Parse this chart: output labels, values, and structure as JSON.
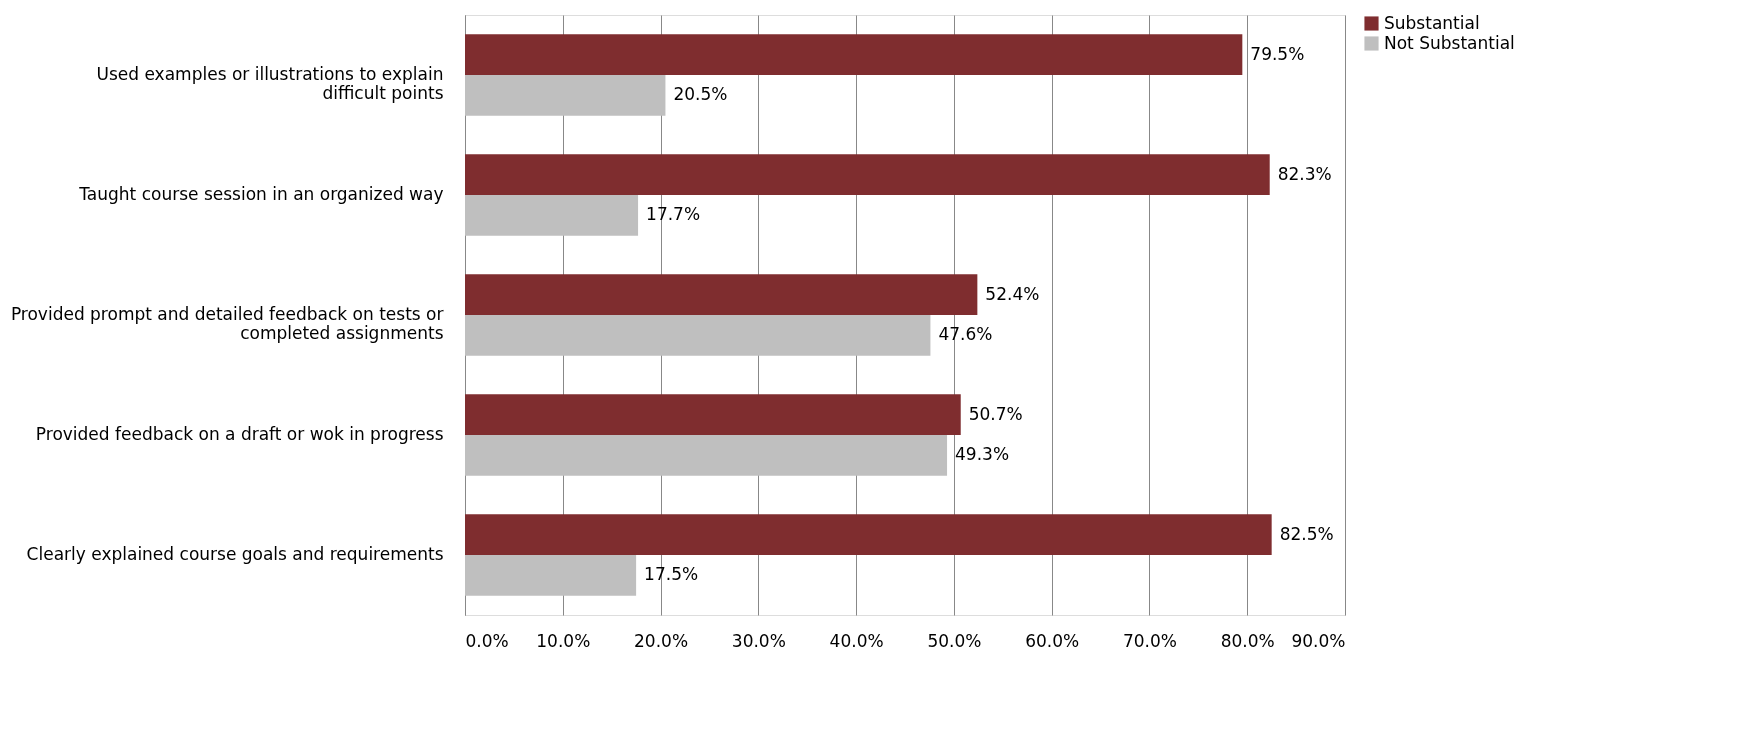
{
  "chart_data": {
    "type": "bar",
    "orientation": "horizontal",
    "categories": [
      "Used examples or illustrations to explain difficult points",
      "Taught course session in an organized way",
      "Provided prompt and detailed feedback on tests or completed assignments",
      "Provided feedback on a draft or wok in progress",
      "Clearly explained course goals and requirements"
    ],
    "series": [
      {
        "name": "Substantial",
        "color": "#7f2d2f",
        "values": [
          79.5,
          82.3,
          52.4,
          50.7,
          82.5
        ],
        "value_labels": [
          "79.5%",
          "82.3%",
          "52.4%",
          "50.7%",
          "82.5%"
        ]
      },
      {
        "name": "Not Substantial",
        "color": "#bfbfbf",
        "values": [
          20.5,
          17.7,
          47.6,
          49.3,
          17.5
        ],
        "value_labels": [
          "20.5%",
          "17.7%",
          "47.6%",
          "49.3%",
          "17.5%"
        ]
      }
    ],
    "xlim": [
      0,
      90
    ],
    "xticks": [
      {
        "value": 0,
        "label": "0.0%"
      },
      {
        "value": 10,
        "label": "10.0%"
      },
      {
        "value": 20,
        "label": "20.0%"
      },
      {
        "value": 30,
        "label": "30.0%"
      },
      {
        "value": 40,
        "label": "40.0%"
      },
      {
        "value": 50,
        "label": "50.0%"
      },
      {
        "value": 60,
        "label": "60.0%"
      },
      {
        "value": 70,
        "label": "70.0%"
      },
      {
        "value": 80,
        "label": "80.0%"
      },
      {
        "value": 90,
        "label": "90.0%"
      }
    ],
    "grid": "x",
    "legend": "right"
  }
}
